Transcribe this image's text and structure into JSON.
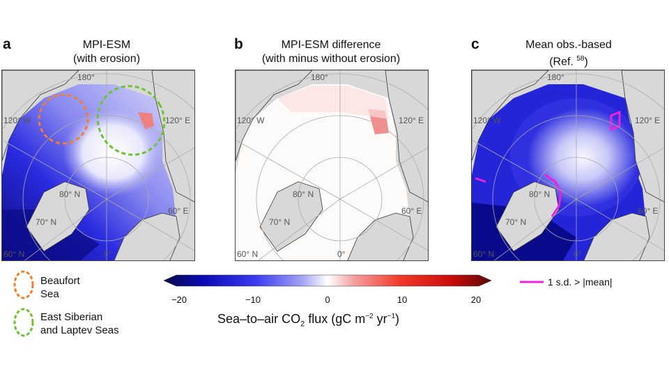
{
  "panels": [
    {
      "letter": "a",
      "title_line1": "MPI-ESM",
      "title_line2": "(with erosion)"
    },
    {
      "letter": "b",
      "title_line1": "MPI-ESM difference",
      "title_line2": "(with minus without erosion)"
    },
    {
      "letter": "c",
      "title_line1": "Mean obs.-based",
      "title_line2_prefix": "(Ref. ",
      "title_line2_ref": "58",
      "title_line2_suffix": ")"
    }
  ],
  "map_labels": {
    "lon_180": "180°",
    "lon_120w": "120° W",
    "lon_120e": "120° E",
    "lat_80n": "80° N",
    "lon_60e": "60° E",
    "lat_70n": "70° N",
    "lat_60n": "60° N",
    "lon_0": "0°"
  },
  "legend": {
    "beaufort_line1": "Beaufort",
    "beaufort_line2": "Sea",
    "beaufort_color": "#f07f2a",
    "esls_line1": "East Siberian",
    "esls_line2": "and Laptev Seas",
    "esls_color": "#6cc42c",
    "sd_label": "1 s.d. > |mean|",
    "sd_color": "#ee22dd"
  },
  "colorbar": {
    "ticks": [
      "−20",
      "−10",
      "0",
      "10",
      "20"
    ],
    "label_main": "Sea–to–air CO",
    "label_sub": "2",
    "label_flux": " flux (gC m",
    "label_sup1": "−2",
    "label_yr": " yr",
    "label_sup2": "−1",
    "label_end": ")",
    "min": -20,
    "max": 20,
    "colors": [
      "#08084a",
      "#0a0ab4",
      "#3a3af0",
      "#a0a0f4",
      "#ffffff",
      "#f4a0a0",
      "#f03a2a",
      "#c80a0a",
      "#5a0808"
    ]
  }
}
